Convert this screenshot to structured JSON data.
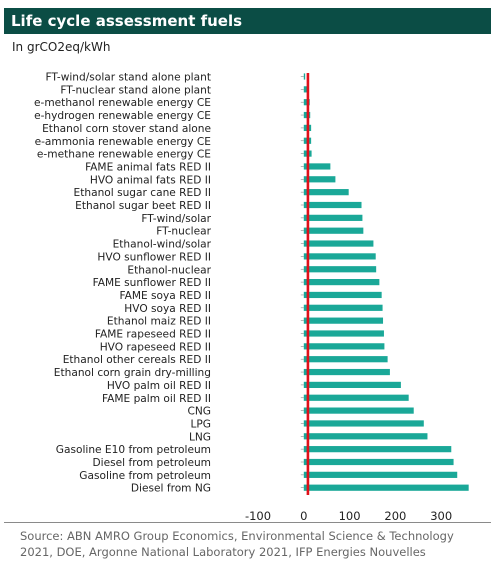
{
  "header": {
    "title": "Life cycle assessment fuels",
    "unit": "In grCO2eq/kWh"
  },
  "source": "Source: ABN AMRO Group Economics, Environmental Science & Technology 2021, DOE, Argonne National Laboratory 2021, IFP Energies Nouvelles",
  "colors": {
    "title_background": "#0b4d45",
    "bar": "#1aa898",
    "reference_line": "#e0101a",
    "gridline": "#cccccc"
  },
  "chart_data": {
    "type": "bar",
    "orientation": "horizontal",
    "title": "Life cycle assessment fuels",
    "ylabel": "In grCO2eq/kWh",
    "categories": [
      "FT-wind/solar stand alone plant",
      "FT-nuclear stand alone plant",
      "e-methanol renewable energy CE",
      "e-hydrogen renewable energy CE",
      "Ethanol corn stover stand alone",
      "e-ammonia renewable energy CE",
      "e-methane renewable energy CE",
      "FAME animal fats RED II",
      "HVO animal fats RED II",
      "Ethanol sugar cane RED II",
      "Ethanol sugar beet RED II",
      "FT-wind/solar",
      "FT-nuclear",
      "Ethanol-wind/solar",
      "HVO sunflower RED II",
      "Ethanol-nuclear",
      "FAME sunflower RED II",
      "FAME soya RED II",
      "HVO soya RED II",
      "Ethanol maiz RED II",
      "FAME rapeseed RED II",
      "HVO rapeseed RED II",
      "Ethanol other cereals RED II",
      "Ethanol corn grain dry-milling",
      "HVO palm oil RED II",
      "FAME palm oil RED II",
      "CNG",
      "LPG",
      "LNG",
      "Gasoline E10 from petroleum",
      "Diesel from petroleum",
      "Gasoline from petroleum",
      "Diesel from NG"
    ],
    "values": [
      3,
      7,
      13,
      14,
      16,
      16,
      17,
      58,
      69,
      98,
      126,
      128,
      130,
      152,
      157,
      158,
      165,
      170,
      172,
      173,
      175,
      176,
      183,
      188,
      212,
      229,
      240,
      262,
      270,
      322,
      327,
      335,
      360
    ],
    "xlim": [
      -100,
      400
    ],
    "x_ticks": [
      -100,
      0,
      100,
      200,
      300
    ],
    "reference_line_x": 9,
    "grid": false,
    "legend": "none"
  }
}
